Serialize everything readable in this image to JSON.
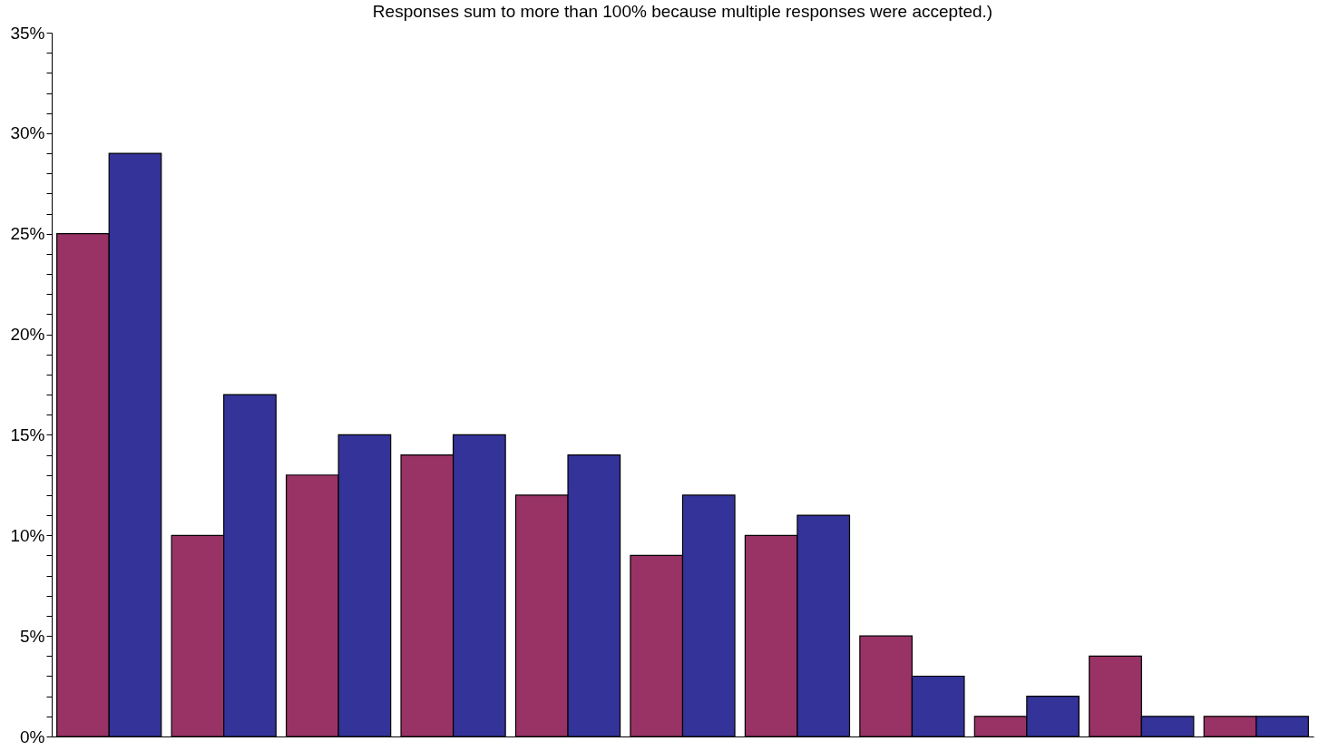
{
  "chart_data": {
    "type": "bar",
    "subtitle": "Responses sum to more than 100% because multiple responses were accepted.)",
    "categories": [
      null,
      null,
      null,
      null,
      null,
      null,
      null,
      null,
      null,
      null,
      null
    ],
    "series": [
      {
        "color": "#993366",
        "values": [
          25,
          10,
          13,
          14,
          12,
          9,
          10,
          5,
          1,
          4,
          1
        ]
      },
      {
        "color": "#333399",
        "values": [
          29,
          17,
          15,
          15,
          14,
          12,
          11,
          3,
          2,
          1,
          1
        ]
      }
    ],
    "ylim": [
      0,
      35
    ],
    "yticks": [
      {
        "value": 0,
        "label": "0%"
      },
      {
        "value": 1,
        "label": null
      },
      {
        "value": 2,
        "label": null
      },
      {
        "value": 3,
        "label": null
      },
      {
        "value": 4,
        "label": null
      },
      {
        "value": 5,
        "label": "5%"
      },
      {
        "value": 6,
        "label": null
      },
      {
        "value": 7,
        "label": null
      },
      {
        "value": 8,
        "label": null
      },
      {
        "value": 9,
        "label": null
      },
      {
        "value": 10,
        "label": "10%"
      },
      {
        "value": 11,
        "label": null
      },
      {
        "value": 12,
        "label": null
      },
      {
        "value": 13,
        "label": null
      },
      {
        "value": 14,
        "label": null
      },
      {
        "value": 15,
        "label": "15%"
      },
      {
        "value": 16,
        "label": null
      },
      {
        "value": 17,
        "label": null
      },
      {
        "value": 18,
        "label": null
      },
      {
        "value": 19,
        "label": null
      },
      {
        "value": 20,
        "label": "20%"
      },
      {
        "value": 21,
        "label": null
      },
      {
        "value": 22,
        "label": null
      },
      {
        "value": 23,
        "label": null
      },
      {
        "value": 24,
        "label": null
      },
      {
        "value": 25,
        "label": "25%"
      },
      {
        "value": 26,
        "label": null
      },
      {
        "value": 27,
        "label": null
      },
      {
        "value": 28,
        "label": null
      },
      {
        "value": 29,
        "label": null
      },
      {
        "value": 30,
        "label": "30%"
      },
      {
        "value": 31,
        "label": null
      },
      {
        "value": 32,
        "label": null
      },
      {
        "value": 33,
        "label": null
      },
      {
        "value": 34,
        "label": null
      },
      {
        "value": 35,
        "label": "35%"
      }
    ],
    "grid": false,
    "legend": false,
    "tick_labels": "y"
  }
}
